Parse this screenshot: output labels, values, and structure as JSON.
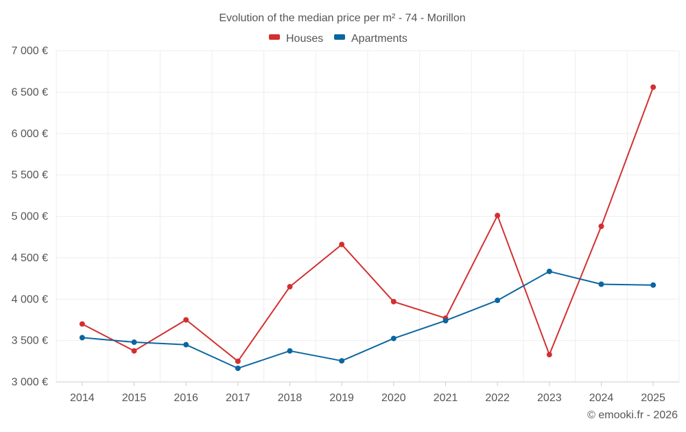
{
  "chart_data": {
    "type": "line",
    "title": "Evolution of the median price per m² - 74 - Morillon",
    "categories": [
      "2014",
      "2015",
      "2016",
      "2017",
      "2018",
      "2019",
      "2020",
      "2021",
      "2022",
      "2023",
      "2024",
      "2025"
    ],
    "series": [
      {
        "name": "Houses",
        "color": "#d32f2f",
        "values": [
          3700,
          3375,
          3750,
          3250,
          4150,
          4660,
          3970,
          3770,
          5010,
          3330,
          4880,
          6560
        ]
      },
      {
        "name": "Apartments",
        "color": "#0a66a0",
        "values": [
          3535,
          3480,
          3450,
          3165,
          3375,
          3255,
          3525,
          3740,
          3985,
          4335,
          4180,
          4170
        ]
      }
    ],
    "y_ticks": [
      {
        "value": 3000,
        "label": "3 000 €"
      },
      {
        "value": 3500,
        "label": "3 500 €"
      },
      {
        "value": 4000,
        "label": "4 000 €"
      },
      {
        "value": 4500,
        "label": "4 500 €"
      },
      {
        "value": 5000,
        "label": "5 000 €"
      },
      {
        "value": 5500,
        "label": "5 500 €"
      },
      {
        "value": 6000,
        "label": "6 000 €"
      },
      {
        "value": 6500,
        "label": "6 500 €"
      },
      {
        "value": 7000,
        "label": "7 000 €"
      }
    ],
    "ylim": [
      3000,
      7000
    ],
    "xlabel": "",
    "ylabel": "",
    "grid": true,
    "legend": "top-center"
  },
  "credit": "© emooki.fr - 2026",
  "colors": {
    "grid": "#eeeeee",
    "axis": "#cccccc",
    "text": "#555555"
  }
}
